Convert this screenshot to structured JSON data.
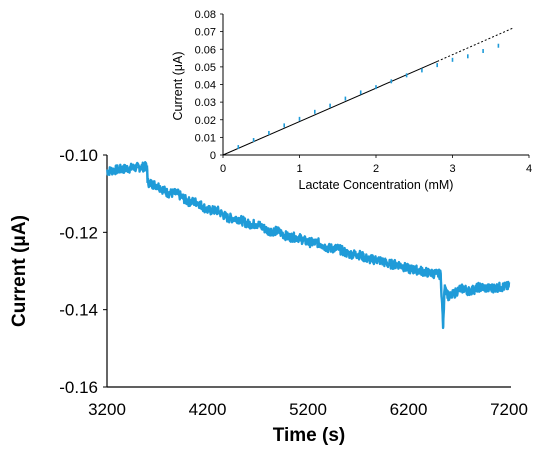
{
  "chart_data": [
    {
      "id": "main",
      "type": "line",
      "xlabel": "Time (s)",
      "ylabel": "Current (μA)",
      "xlim": [
        3200,
        7200
      ],
      "ylim": [
        -0.16,
        -0.1
      ],
      "xticks": [
        3200,
        4200,
        5200,
        6200,
        7200
      ],
      "xtick_labels": [
        "3200",
        "4200",
        "5200",
        "6200",
        "7200"
      ],
      "yticks": [
        -0.1,
        -0.12,
        -0.14,
        -0.16
      ],
      "ytick_labels": [
        "-0.10",
        "-0.12",
        "-0.14",
        "-0.16"
      ],
      "grid": false,
      "line_color": "#1f9bd8",
      "series": [
        {
          "x": [
            3200,
            3300,
            3400,
            3500,
            3600,
            3601,
            3650,
            3700,
            3801,
            3900,
            4001,
            4100,
            4201,
            4300,
            4401,
            4500,
            4601,
            4700,
            4801,
            4900,
            5001,
            5100,
            5201,
            5300,
            5401,
            5500,
            5601,
            5700,
            5801,
            5900,
            6001,
            6100,
            6201,
            6300,
            6401,
            6500,
            6520,
            6530,
            6545,
            6560,
            6600,
            6650,
            6700,
            6750,
            6800,
            6850,
            6900,
            7000,
            7100,
            7200
          ],
          "y": [
            -0.1042,
            -0.1038,
            -0.1035,
            -0.1032,
            -0.103,
            -0.107,
            -0.1075,
            -0.1078,
            -0.1098,
            -0.11,
            -0.112,
            -0.1122,
            -0.1143,
            -0.1144,
            -0.1163,
            -0.1164,
            -0.1178,
            -0.1179,
            -0.1196,
            -0.1197,
            -0.1212,
            -0.1213,
            -0.1226,
            -0.1227,
            -0.1241,
            -0.1242,
            -0.1256,
            -0.1257,
            -0.127,
            -0.1271,
            -0.1282,
            -0.1283,
            -0.1295,
            -0.1298,
            -0.1305,
            -0.1308,
            -0.131,
            -0.1365,
            -0.1445,
            -0.1335,
            -0.1368,
            -0.136,
            -0.1348,
            -0.1345,
            -0.1352,
            -0.1348,
            -0.1342,
            -0.1345,
            -0.1342,
            -0.134
          ]
        }
      ]
    },
    {
      "id": "inset",
      "type": "scatter",
      "xlabel": "Lactate Concentration (mM)",
      "ylabel": "Current (μA)",
      "xlim": [
        0,
        4
      ],
      "ylim": [
        0,
        0.08
      ],
      "xticks": [
        0,
        1,
        2,
        3,
        4
      ],
      "xtick_labels": [
        "0",
        "1",
        "2",
        "3",
        "4"
      ],
      "yticks": [
        0,
        0.01,
        0.02,
        0.03,
        0.04,
        0.05,
        0.06,
        0.07,
        0.08
      ],
      "ytick_labels": [
        "0",
        "0.01",
        "0.02",
        "0.03",
        "0.04",
        "0.05",
        "0.06",
        "0.07",
        "0.08"
      ],
      "grid": false,
      "marker_color": "#1f9bd8",
      "series": [
        {
          "x": [
            0.2,
            0.4,
            0.6,
            0.8,
            1.0,
            1.2,
            1.4,
            1.6,
            1.8,
            2.0,
            2.2,
            2.4,
            2.6,
            2.8,
            3.0,
            3.2,
            3.4,
            3.6
          ],
          "y": [
            0.0045,
            0.0085,
            0.0125,
            0.0168,
            0.0205,
            0.0245,
            0.028,
            0.032,
            0.0355,
            0.0385,
            0.0418,
            0.0452,
            0.048,
            0.051,
            0.054,
            0.056,
            0.059,
            0.062
          ]
        }
      ],
      "fit": {
        "x": [
          0,
          2.8
        ],
        "y": [
          0,
          0.0531
        ],
        "color": "#000000"
      },
      "fit_extension": {
        "x": [
          2.8,
          3.8
        ],
        "y": [
          0.0531,
          0.0722
        ],
        "color": "#000000",
        "style": "dotted"
      }
    }
  ]
}
